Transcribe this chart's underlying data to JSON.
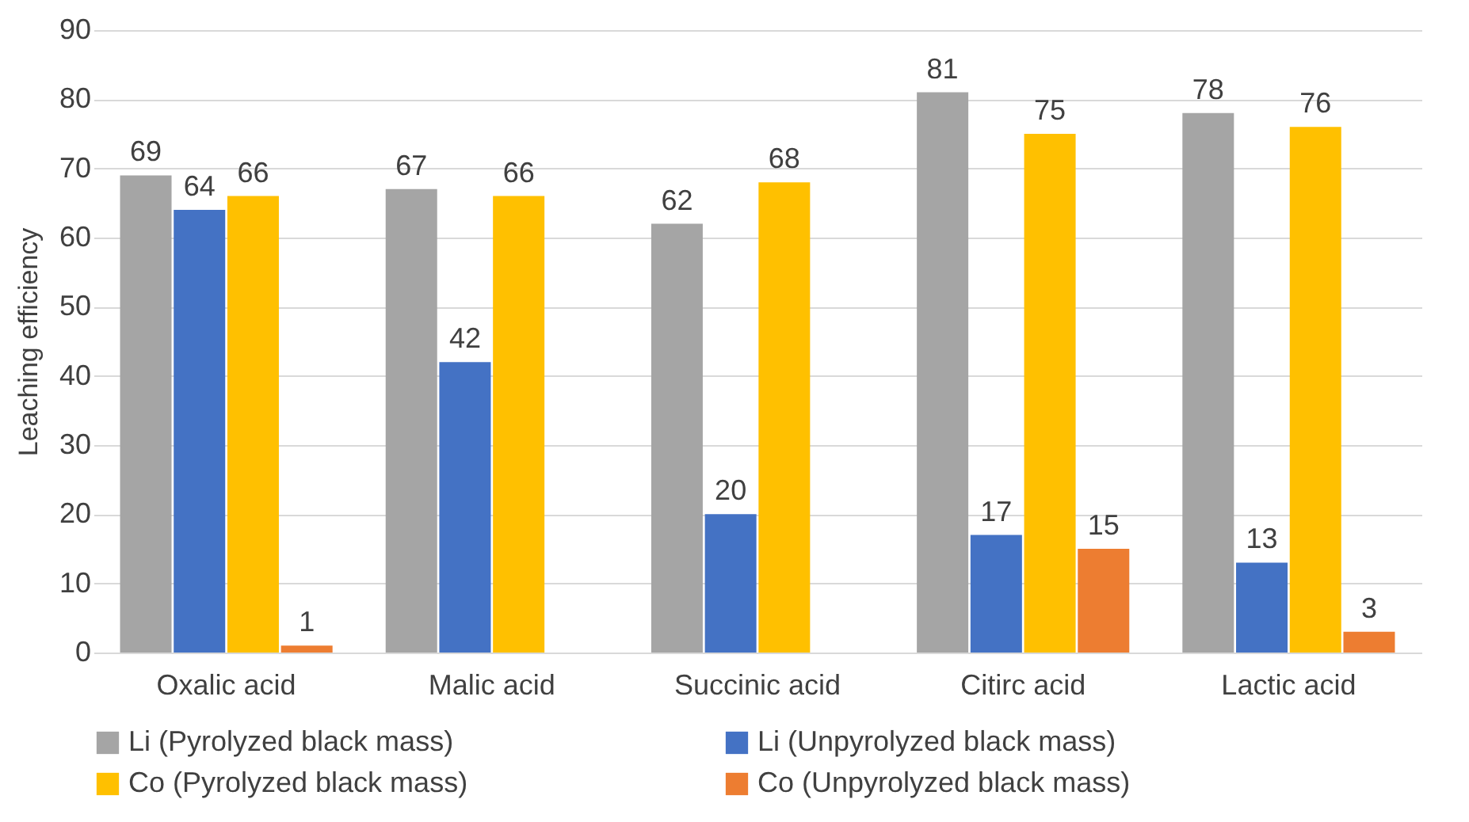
{
  "chart_data": {
    "type": "bar",
    "ylabel": "Leaching efficiency",
    "categories": [
      "Oxalic acid",
      "Malic acid",
      "Succinic acid",
      "Citirc acid",
      "Lactic acid"
    ],
    "series": [
      {
        "name": "Li (Pyrolyzed black mass)",
        "color": "#a5a5a5",
        "values": [
          69,
          67,
          62,
          81,
          78
        ]
      },
      {
        "name": "Li (Unpyrolyzed black mass)",
        "color": "#4472c4",
        "values": [
          64,
          42,
          20,
          17,
          13
        ]
      },
      {
        "name": "Co (Pyrolyzed black mass)",
        "color": "#ffc000",
        "values": [
          66,
          66,
          68,
          75,
          76
        ]
      },
      {
        "name": "Co (Unpyrolyzed black mass)",
        "color": "#ed7d31",
        "values": [
          1,
          null,
          null,
          15,
          3
        ]
      }
    ],
    "ylim": [
      0,
      90
    ],
    "yticks": [
      0,
      10,
      20,
      30,
      40,
      50,
      60,
      70,
      80,
      90
    ],
    "grid": "y",
    "legend": "bottom",
    "data_labels": true
  }
}
